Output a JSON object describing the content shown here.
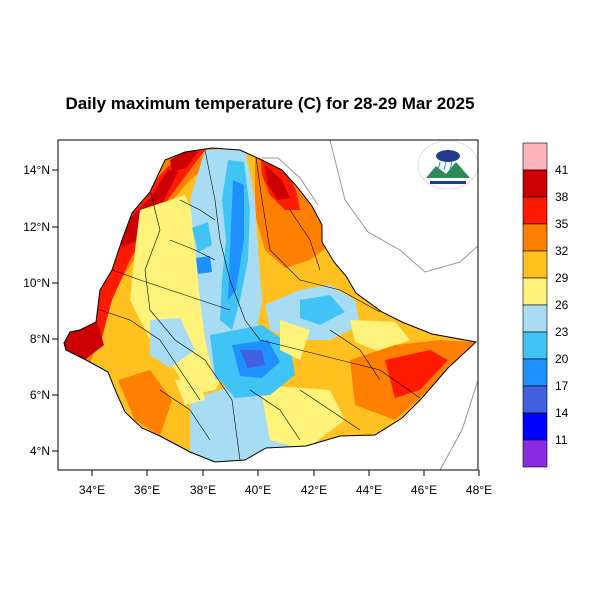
{
  "title": "Daily maximum temperature (C) for 28-29 Mar 2025",
  "lon_ticks": [
    "34°E",
    "36°E",
    "38°E",
    "40°E",
    "42°E",
    "44°E",
    "46°E",
    "48°E"
  ],
  "lat_ticks": [
    "14°N",
    "12°N",
    "10°N",
    "8°N",
    "6°N",
    "4°N"
  ],
  "legend": {
    "levels": [
      "41",
      "38",
      "35",
      "32",
      "29",
      "26",
      "23",
      "20",
      "17",
      "14",
      "11"
    ],
    "colors": [
      "#ffb3ba",
      "#cc0000",
      "#ff1a00",
      "#ff8000",
      "#ffc020",
      "#fff27a",
      "#a8dcf5",
      "#40c4f5",
      "#1e90ff",
      "#4060e0",
      "#0000ff",
      "#8a2be2"
    ]
  },
  "logo": {
    "icon": "ethiopian-meteorology-institute-emblem"
  },
  "colors": {
    "frame": "#000000",
    "border": "#000000",
    "coast": "#999999"
  }
}
